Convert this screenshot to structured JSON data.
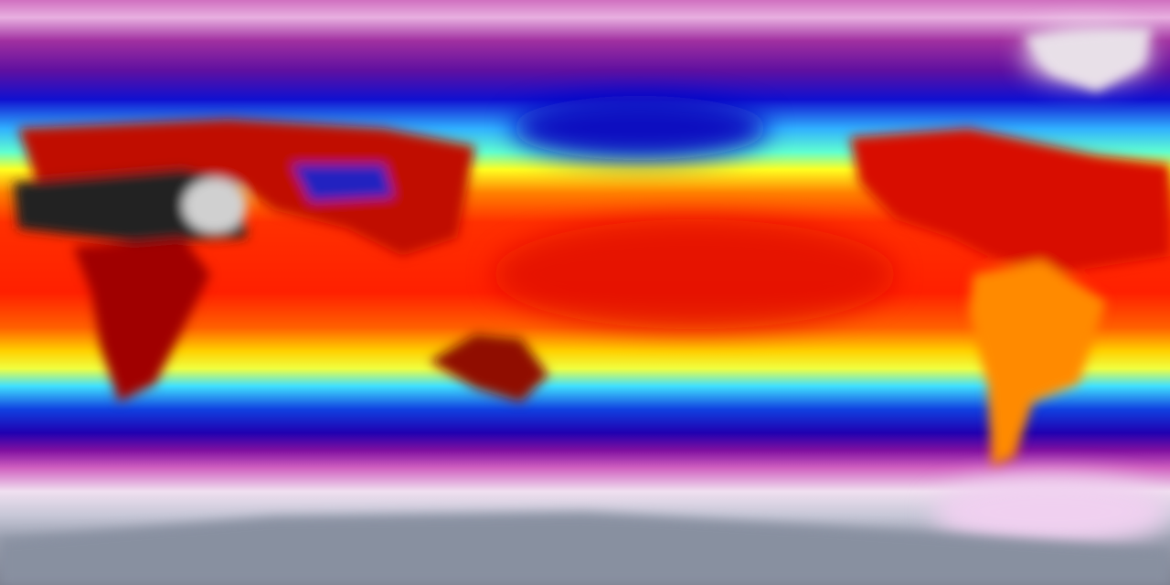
{
  "map": {
    "projection": "equirectangular",
    "variable_shown_by_color": "temperature",
    "colormap": [
      "#8a90a0",
      "#f0e8f0",
      "#c040b0",
      "#7010a0",
      "#0010d0",
      "#40e0ff",
      "#ffff00",
      "#ff8000",
      "#ff1000",
      "#a00000",
      "#202020",
      "#e0e0e0"
    ]
  }
}
